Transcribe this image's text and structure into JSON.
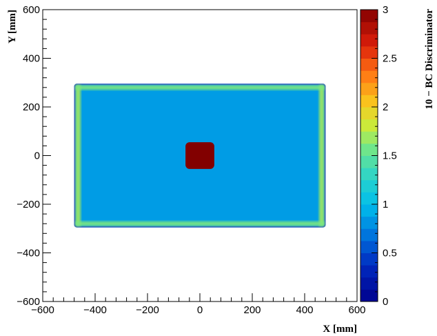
{
  "chart_data": {
    "type": "heatmap",
    "xlabel": "X [mm]",
    "ylabel": "Y [mm]",
    "zlabel": "10 − BC Discriminator",
    "xlim": [
      -600,
      600
    ],
    "ylim": [
      -600,
      600
    ],
    "zlim": [
      0,
      3
    ],
    "x_ticks": [
      "−600",
      "−400",
      "−200",
      "0",
      "200",
      "400",
      "600"
    ],
    "y_ticks": [
      "−600",
      "−400",
      "−200",
      "0",
      "200",
      "400",
      "600"
    ],
    "z_ticks": [
      "0",
      "0.5",
      "1",
      "1.5",
      "2",
      "2.5",
      "3"
    ],
    "grid": false,
    "colorbar_position": "right",
    "regions": [
      {
        "name": "detector-plane",
        "x_range": [
          -475,
          475
        ],
        "y_range": [
          -290,
          290
        ],
        "z": 0.85
      },
      {
        "name": "left-edge-band",
        "x_range": [
          -475,
          -455
        ],
        "y_range": [
          -290,
          290
        ],
        "z": 1.7
      },
      {
        "name": "right-edge-band",
        "x_range": [
          455,
          475
        ],
        "y_range": [
          -290,
          290
        ],
        "z": 1.7
      },
      {
        "name": "top-edge-band",
        "x_range": [
          -475,
          475
        ],
        "y_range": [
          270,
          290
        ],
        "z": 1.6
      },
      {
        "name": "bottom-edge-band",
        "x_range": [
          -475,
          475
        ],
        "y_range": [
          -290,
          -270
        ],
        "z": 1.6
      },
      {
        "name": "central-block",
        "x_range": [
          -55,
          55
        ],
        "y_range": [
          -55,
          55
        ],
        "z": 3.0
      }
    ]
  }
}
